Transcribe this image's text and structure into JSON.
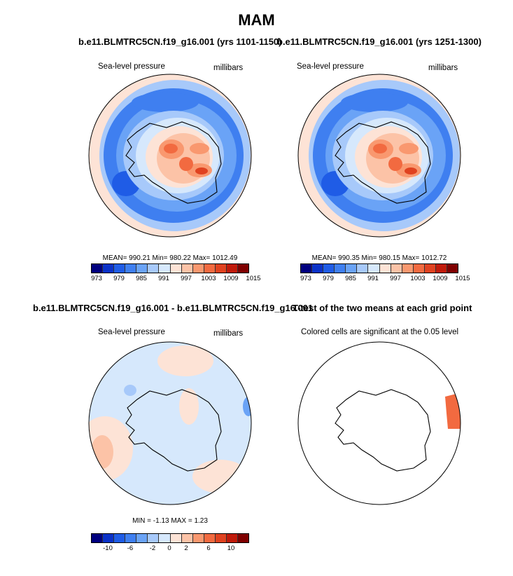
{
  "title": "MAM",
  "panels": [
    {
      "title": "b.e11.BLMTRC5CN.f19_g16.001 (yrs 1101-1150)",
      "left_label": "Sea-level pressure",
      "right_label": "millibars",
      "stats": "MEAN= 990.21  Min= 980.22  Max= 1012.49",
      "colorbar": {
        "colors": [
          "#00007f",
          "#0a32c8",
          "#1f5ce6",
          "#3f7ff0",
          "#6aa3f6",
          "#a7c9fa",
          "#d6e8fc",
          "#fde3d6",
          "#fcc3a7",
          "#f9986f",
          "#f26a40",
          "#e04220",
          "#c01a0a",
          "#7f0000"
        ],
        "ticks": [
          "973",
          "979",
          "985",
          "991",
          "997",
          "1003",
          "1009",
          "1015"
        ]
      }
    },
    {
      "title": "b.e11.BLMTRC5CN.f19_g16.001 (yrs 1251-1300)",
      "left_label": "Sea-level pressure",
      "right_label": "millibars",
      "stats": "MEAN= 990.35  Min= 980.15  Max= 1012.72",
      "colorbar": {
        "colors": [
          "#00007f",
          "#0a32c8",
          "#1f5ce6",
          "#3f7ff0",
          "#6aa3f6",
          "#a7c9fa",
          "#d6e8fc",
          "#fde3d6",
          "#fcc3a7",
          "#f9986f",
          "#f26a40",
          "#e04220",
          "#c01a0a",
          "#7f0000"
        ],
        "ticks": [
          "973",
          "979",
          "985",
          "991",
          "997",
          "1003",
          "1009",
          "1015"
        ]
      }
    },
    {
      "title": "b.e11.BLMTRC5CN.f19_g16.001 - b.e11.BLMTRC5CN.f19_g16.001",
      "left_label": "Sea-level pressure",
      "right_label": "millibars",
      "stats": "MIN =  -1.13  MAX =   1.23",
      "colorbar": {
        "colors": [
          "#00007f",
          "#0a32c8",
          "#1f5ce6",
          "#3f7ff0",
          "#6aa3f6",
          "#a7c9fa",
          "#d6e8fc",
          "#fde3d6",
          "#fcc3a7",
          "#f9986f",
          "#f26a40",
          "#e04220",
          "#c01a0a",
          "#7f0000"
        ],
        "ticks": [
          "-10",
          "-6",
          "-2",
          "0",
          "2",
          "6",
          "10"
        ]
      }
    },
    {
      "title": "T-test of the two means at each grid point",
      "left_label": "Colored cells are significant at the 0.05 level"
    }
  ]
}
